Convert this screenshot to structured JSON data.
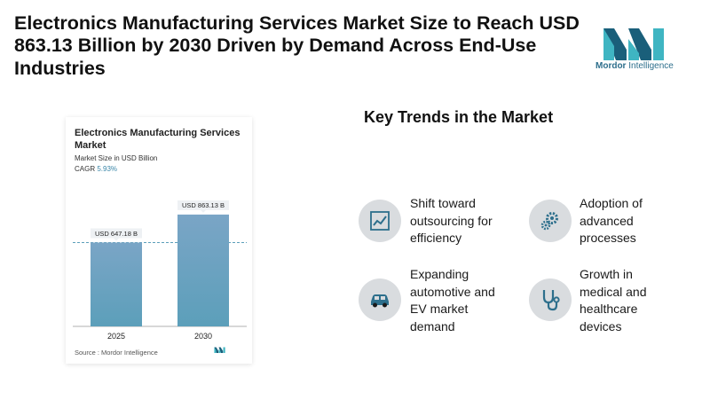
{
  "headline": "Electronics Manufacturing Services Market Size to Reach USD 863.13 Billion by 2030 Driven by Demand Across End-Use Industries",
  "brand": {
    "name_bold": "Mordor",
    "name_rest": "Intelligence",
    "color": "#2d6f8c"
  },
  "chart_data": {
    "type": "bar",
    "title": "Electronics Manufacturing Services Market",
    "subtitle": "Market Size in USD Billion",
    "cagr_label": "CAGR",
    "cagr_value": "5.93%",
    "categories": [
      "2025",
      "2030"
    ],
    "values": [
      647.18,
      863.13
    ],
    "value_labels": [
      "USD 647.18 B",
      "USD 863.13 B"
    ],
    "reference_line_value": 647.18,
    "ylim": [
      0,
      1000
    ],
    "bar_color_top": "#7aa5c6",
    "bar_color_bottom": "#5c9fba",
    "source": "Source : Mordor Intelligence"
  },
  "trends": {
    "title": "Key Trends in the Market",
    "items": [
      {
        "lines": [
          "Shift toward",
          "outsourcing for",
          "efficiency"
        ],
        "icon": "line-chart-icon"
      },
      {
        "lines": [
          "Adoption of",
          "advanced",
          "processes"
        ],
        "icon": "gears-icon"
      },
      {
        "lines": [
          "Expanding",
          "automotive and",
          "EV market",
          "demand"
        ],
        "icon": "car-icon"
      },
      {
        "lines": [
          "Growth in",
          "medical and",
          "healthcare",
          "devices"
        ],
        "icon": "stethoscope-icon"
      }
    ]
  }
}
